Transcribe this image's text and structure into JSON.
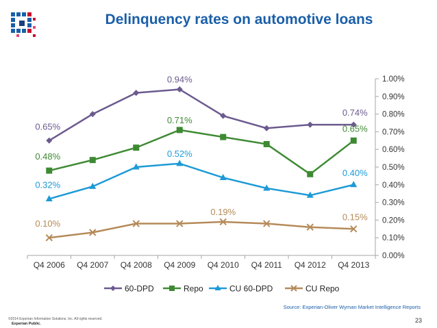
{
  "slide": {
    "title": "Delinquency rates on automotive loans",
    "source": "Source: Experian-Oliver Wyman Market Intelligence Reports",
    "copyright": "©2014 Experian Information Solutions, Inc. All rights reserved.",
    "classification": "Experian Public.",
    "page_number": "23"
  },
  "chart_data": {
    "type": "line",
    "title": "Delinquency rates on automotive loans",
    "categories": [
      "Q4 2006",
      "Q4 2007",
      "Q4 2008",
      "Q4 2009",
      "Q4 2010",
      "Q4 2011",
      "Q4 2012",
      "Q4 2013"
    ],
    "ylim": [
      0,
      1.0
    ],
    "yticks": [
      "0.00%",
      "0.10%",
      "0.20%",
      "0.30%",
      "0.40%",
      "0.50%",
      "0.60%",
      "0.70%",
      "0.80%",
      "0.90%",
      "1.00%"
    ],
    "y_axis_side": "right",
    "legend_position": "bottom",
    "series": [
      {
        "name": "60-DPD",
        "color": "#6b5a8e",
        "marker": "diamond",
        "values": [
          0.65,
          0.8,
          0.92,
          0.94,
          0.79,
          0.72,
          0.74,
          0.74
        ],
        "labels": [
          {
            "index": 0,
            "text": "0.65%"
          },
          {
            "index": 3,
            "text": "0.94%"
          },
          {
            "index": 7,
            "text": "0.74%"
          }
        ]
      },
      {
        "name": "Repo",
        "color": "#3e8a33",
        "marker": "square",
        "values": [
          0.48,
          0.54,
          0.61,
          0.71,
          0.67,
          0.63,
          0.46,
          0.65
        ],
        "labels": [
          {
            "index": 0,
            "text": "0.48%"
          },
          {
            "index": 3,
            "text": "0.71%"
          },
          {
            "index": 7,
            "text": "0.65%"
          }
        ]
      },
      {
        "name": "CU 60-DPD",
        "color": "#1d9ad6",
        "marker": "triangle",
        "values": [
          0.32,
          0.39,
          0.5,
          0.52,
          0.44,
          0.38,
          0.34,
          0.4
        ],
        "labels": [
          {
            "index": 0,
            "text": "0.32%"
          },
          {
            "index": 3,
            "text": "0.52%"
          },
          {
            "index": 7,
            "text": "0.40%"
          }
        ]
      },
      {
        "name": "CU Repo",
        "color": "#b58a59",
        "marker": "x",
        "values": [
          0.1,
          0.13,
          0.18,
          0.18,
          0.19,
          0.18,
          0.16,
          0.15
        ],
        "labels": [
          {
            "index": 0,
            "text": "0.10%"
          },
          {
            "index": 4,
            "text": "0.19%"
          },
          {
            "index": 7,
            "text": "0.15%"
          }
        ]
      }
    ]
  }
}
